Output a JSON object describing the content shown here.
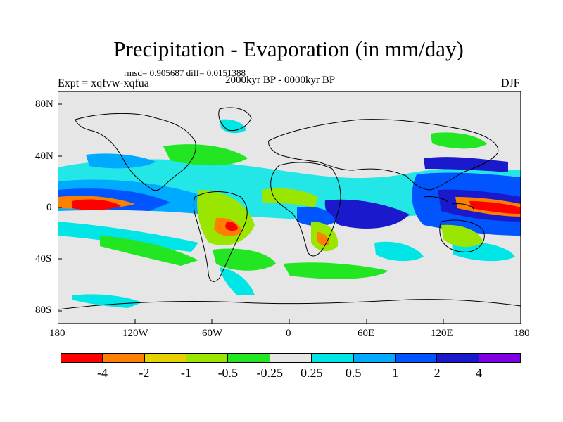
{
  "title": "Precipitation - Evaporation (in mm/day)",
  "stats": "rmsd= 0.905687 diff= 0.0151388",
  "experiment": "Expt = xqfvw-xqfua",
  "period": "2000kyr BP - 0000kyr BP",
  "season": "DJF",
  "y_axis_labels": [
    "80N",
    "40N",
    "0",
    "40S",
    "80S"
  ],
  "x_axis_labels": [
    "180",
    "120W",
    "60W",
    "0",
    "60E",
    "120E",
    "180"
  ],
  "colorbar": {
    "colors": [
      "#ff0000",
      "#ff8000",
      "#e6d200",
      "#9ae600",
      "#22e622",
      "#e6e6e6",
      "#00e6e6",
      "#00aaff",
      "#0055ff",
      "#1a1acc",
      "#8000e6"
    ],
    "labels": [
      "-4",
      "-2",
      "-1",
      "-0.5",
      "-0.25",
      "0.25",
      "0.5",
      "1",
      "2",
      "4"
    ]
  }
}
